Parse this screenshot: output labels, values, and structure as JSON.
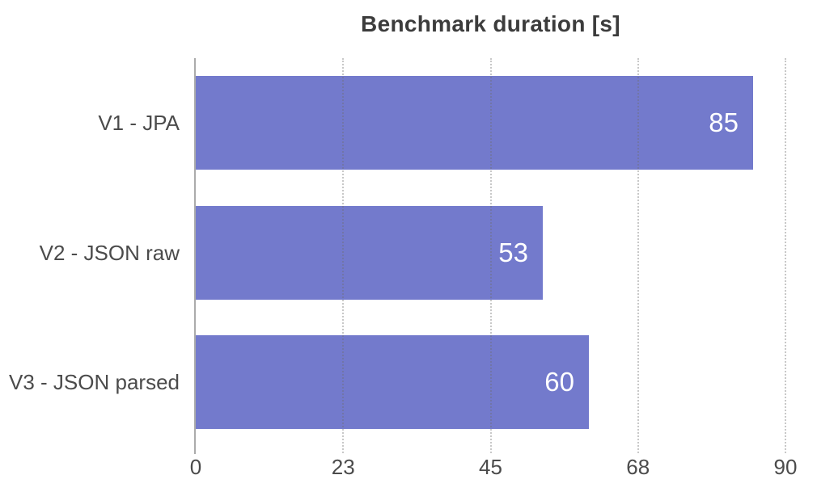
{
  "title": "Benchmark duration [s]",
  "colors": {
    "background": "#FFFFFF",
    "bar": "#737ACC",
    "title": "#3C3C3C",
    "label": "#4B4B4B",
    "grid": "rgba(110,110,110,0.38)",
    "axis": "#ABABAB",
    "value_label": "#FFFFFF"
  },
  "chart_data": {
    "type": "bar",
    "orientation": "horizontal",
    "title": "Benchmark duration [s]",
    "categories": [
      "V1 - JPA",
      "V2 - JSON raw",
      "V3 - JSON parsed"
    ],
    "values": [
      85,
      53,
      60
    ],
    "value_labels": [
      "85",
      "53",
      "60"
    ],
    "xlabel": "",
    "ylabel": "",
    "xlim": [
      0,
      90
    ],
    "x_ticks": [
      {
        "value": 0,
        "label": "0"
      },
      {
        "value": 22.5,
        "label": "23"
      },
      {
        "value": 45,
        "label": "45"
      },
      {
        "value": 67.5,
        "label": "68"
      },
      {
        "value": 90,
        "label": "90"
      }
    ],
    "grid": "vertical-dotted",
    "legend": "none",
    "bar_color": "#737ACC",
    "value_label_position": "inside-end"
  }
}
